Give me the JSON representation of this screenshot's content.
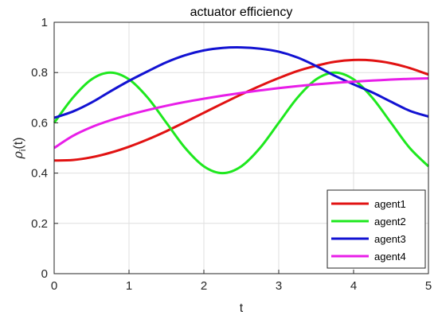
{
  "chart_data": {
    "type": "line",
    "title": "actuator efficiency",
    "xlabel": "t",
    "ylabel": "ρ_i(t)",
    "xlim": [
      0,
      5
    ],
    "ylim": [
      0,
      1
    ],
    "xticks": [
      0,
      1,
      2,
      3,
      4,
      5
    ],
    "yticks": [
      0,
      0.2,
      0.4,
      0.6,
      0.8,
      1
    ],
    "grid": true,
    "legend_position": "bottom-right",
    "x": [
      0,
      0.25,
      0.5,
      0.75,
      1,
      1.25,
      1.5,
      1.75,
      2,
      2.25,
      2.5,
      2.75,
      3,
      3.25,
      3.5,
      3.75,
      4,
      4.25,
      4.5,
      4.75,
      5
    ],
    "series": [
      {
        "name": "agent1",
        "color": "#e11212",
        "values": [
          0.45,
          0.452,
          0.463,
          0.481,
          0.505,
          0.534,
          0.567,
          0.603,
          0.64,
          0.677,
          0.713,
          0.747,
          0.778,
          0.806,
          0.827,
          0.843,
          0.85,
          0.848,
          0.837,
          0.818,
          0.792
        ]
      },
      {
        "name": "agent2",
        "color": "#1ee81e",
        "values": [
          0.6,
          0.7,
          0.773,
          0.8,
          0.773,
          0.7,
          0.6,
          0.5,
          0.427,
          0.4,
          0.427,
          0.5,
          0.6,
          0.7,
          0.773,
          0.8,
          0.773,
          0.7,
          0.6,
          0.5,
          0.427
        ]
      },
      {
        "name": "agent3",
        "color": "#1212d2",
        "values": [
          0.62,
          0.645,
          0.681,
          0.725,
          0.767,
          0.805,
          0.841,
          0.869,
          0.888,
          0.898,
          0.9,
          0.895,
          0.883,
          0.86,
          0.826,
          0.787,
          0.753,
          0.721,
          0.684,
          0.648,
          0.625
        ]
      },
      {
        "name": "agent4",
        "color": "#e81ee8",
        "values": [
          0.5,
          0.548,
          0.583,
          0.61,
          0.632,
          0.651,
          0.668,
          0.683,
          0.696,
          0.708,
          0.719,
          0.729,
          0.738,
          0.746,
          0.753,
          0.759,
          0.764,
          0.768,
          0.772,
          0.775,
          0.777
        ]
      }
    ]
  }
}
